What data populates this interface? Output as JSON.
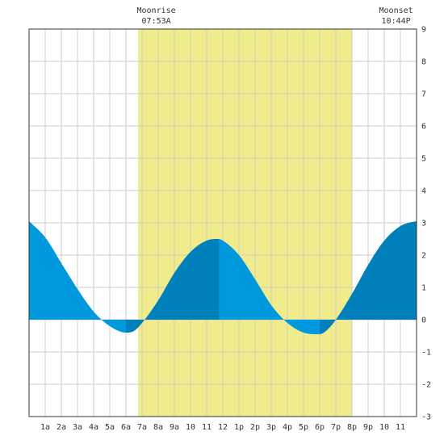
{
  "chart_data": {
    "type": "area",
    "title": "",
    "xlabel": "",
    "ylabel": "",
    "xlim": [
      0,
      24
    ],
    "ylim": [
      -3,
      9
    ],
    "grid": true,
    "x_tick_labels": [
      "1a",
      "2a",
      "3a",
      "4a",
      "5a",
      "6a",
      "7a",
      "8a",
      "9a",
      "10",
      "11",
      "12",
      "1p",
      "2p",
      "3p",
      "4p",
      "5p",
      "6p",
      "7p",
      "8p",
      "9p",
      "10",
      "11"
    ],
    "y_ticks": [
      -3,
      -2,
      -1,
      0,
      1,
      2,
      3,
      4,
      5,
      6,
      7,
      8,
      9
    ],
    "daylight_band": {
      "start_hour": 6.75,
      "end_hour": 20.0
    },
    "annotations": [
      {
        "name": "moonrise",
        "title": "Moonrise",
        "time": "07:53A",
        "hour": 7.88
      },
      {
        "name": "moonset",
        "title": "Moonset",
        "time": "10:44P",
        "hour": 22.73
      }
    ],
    "series": [
      {
        "x": [
          0,
          1,
          2,
          3,
          4,
          5,
          6,
          6.5,
          7,
          8,
          9,
          10,
          11,
          11.75,
          12,
          13,
          14,
          15,
          16,
          17,
          18,
          18.5,
          19,
          20,
          21,
          22,
          23,
          23.5,
          24
        ],
        "values": [
          3.05,
          2.55,
          1.75,
          0.95,
          0.25,
          -0.2,
          -0.4,
          -0.35,
          -0.1,
          0.6,
          1.45,
          2.1,
          2.45,
          2.5,
          2.45,
          2.0,
          1.25,
          0.45,
          -0.1,
          -0.4,
          -0.45,
          -0.3,
          0.0,
          0.8,
          1.7,
          2.45,
          2.9,
          3.0,
          3.05
        ]
      }
    ],
    "shading_segments": [
      {
        "from_hour": 0,
        "to_hour": 6.0,
        "tone": "light"
      },
      {
        "from_hour": 6.0,
        "to_hour": 11.75,
        "tone": "dark"
      },
      {
        "from_hour": 11.75,
        "to_hour": 18.0,
        "tone": "light"
      },
      {
        "from_hour": 18.0,
        "to_hour": 24,
        "tone": "dark"
      }
    ],
    "colors": {
      "background": "#ffffff",
      "grid": "#cccccc",
      "daylight": "#f0ec8c",
      "fill_light": "#0099dd",
      "fill_dark": "#0080bb",
      "axis": "#333333"
    }
  }
}
